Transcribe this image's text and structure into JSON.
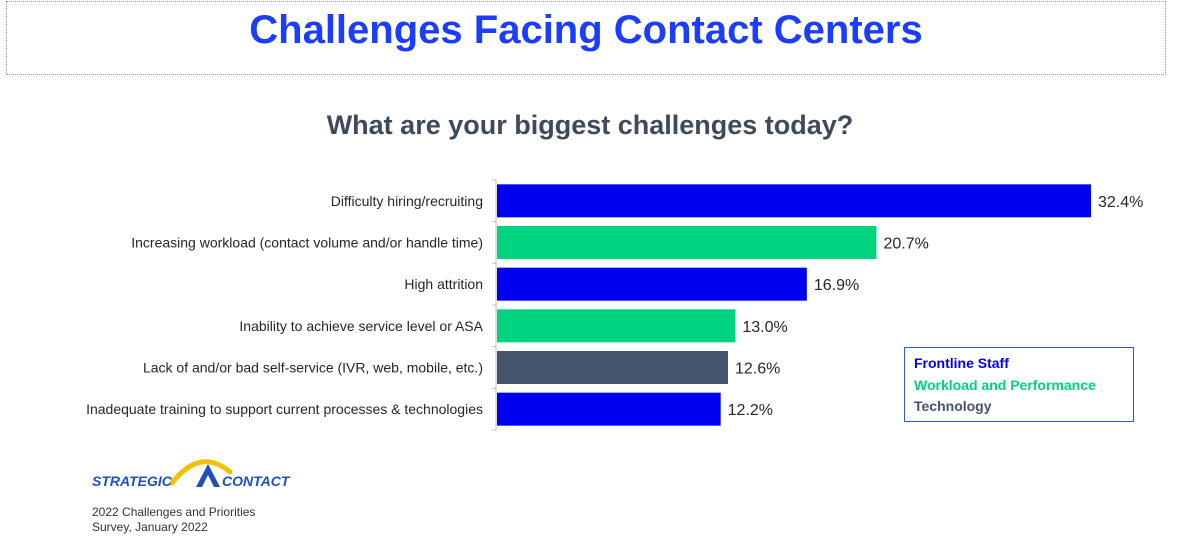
{
  "header": {
    "title": "Challenges Facing Contact Centers"
  },
  "logo": {
    "text_left": "Strategic",
    "text_right": "Contact"
  },
  "source": {
    "line1": "2022 Challenges and Priorities",
    "line2": "Survey, January 2022"
  },
  "colors": {
    "title": "#1a3dff",
    "frontline": "#0000f0",
    "workload": "#00d37f",
    "technology": "#44546a"
  },
  "chart_data": {
    "type": "bar",
    "orientation": "horizontal",
    "title": "What are your biggest challenges today?",
    "xlabel": "",
    "ylabel": "",
    "xlim": [
      0,
      33
    ],
    "grid": false,
    "categories": [
      "Difficulty hiring/recruiting",
      "Increasing workload (contact volume and/or handle time)",
      "High attrition",
      "Inability to achieve service level or ASA",
      "Lack of and/or bad self-service (IVR, web, mobile, etc.)",
      "Inadequate training to support current processes & technologies"
    ],
    "values": [
      32.4,
      20.7,
      16.9,
      13.0,
      12.6,
      12.2
    ],
    "value_labels": [
      "32.4%",
      "20.7%",
      "16.9%",
      "13.0%",
      "12.6%",
      "12.2%"
    ],
    "groups": [
      "Frontline Staff",
      "Workload and Performance",
      "Frontline Staff",
      "Workload and Performance",
      "Technology",
      "Frontline Staff"
    ],
    "legend": {
      "placement": "right",
      "entries": [
        {
          "label": "Frontline Staff",
          "color": "#0000f0"
        },
        {
          "label": "Workload and Performance",
          "color": "#00d37f"
        },
        {
          "label": "Technology",
          "color": "#44546a"
        }
      ]
    }
  }
}
